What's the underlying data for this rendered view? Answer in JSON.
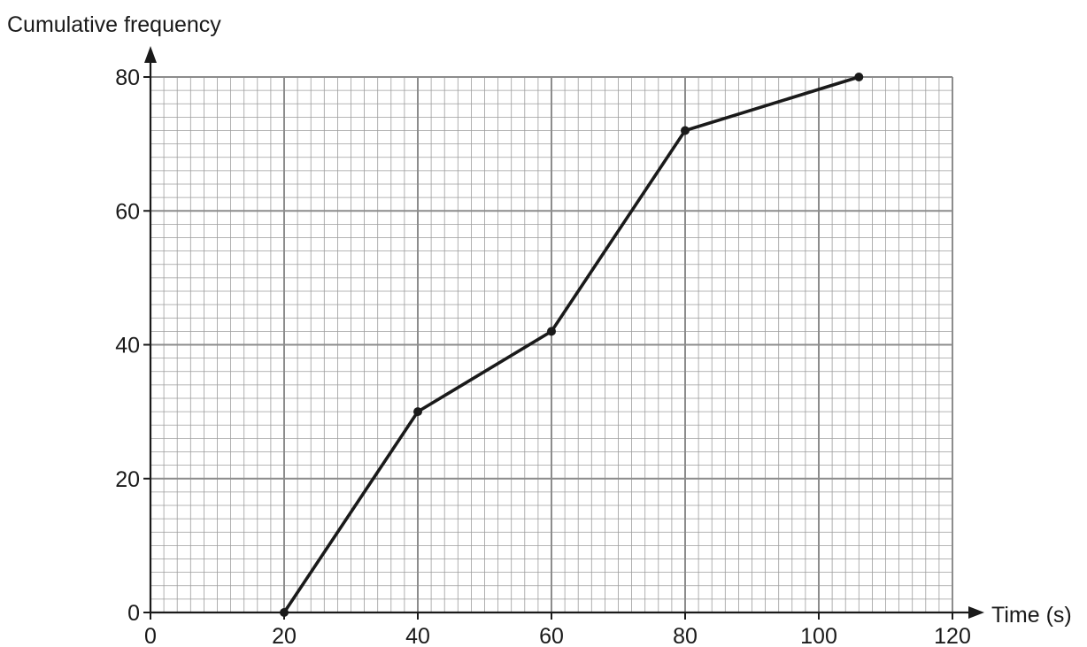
{
  "chart_data": {
    "type": "line",
    "title": "",
    "xlabel": "Time (s)",
    "ylabel": "Cumulative frequency",
    "xlim": [
      0,
      120
    ],
    "ylim": [
      0,
      80
    ],
    "x_ticks": [
      0,
      20,
      40,
      60,
      80,
      100,
      120
    ],
    "y_ticks": [
      0,
      20,
      40,
      60,
      80
    ],
    "x_tick_labels": [
      "0",
      "20",
      "40",
      "60",
      "80",
      "100",
      "120"
    ],
    "y_tick_labels": [
      "0",
      "20",
      "40",
      "60",
      "80"
    ],
    "grid": true,
    "series": [
      {
        "x": [
          20,
          40,
          60,
          80,
          106
        ],
        "y": [
          0,
          30,
          42,
          72,
          80
        ]
      }
    ],
    "colors": {
      "line": "#1a1a1a",
      "grid_major": "#8c8c8c",
      "grid_minor": "#9d9d9d",
      "axis": "#1a1a1a"
    }
  }
}
